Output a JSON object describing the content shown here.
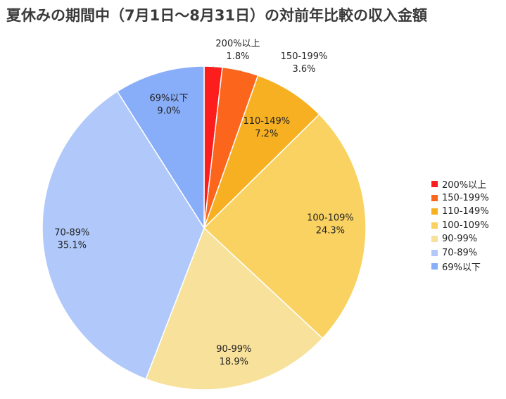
{
  "chart_data": {
    "type": "pie",
    "title": "夏休みの期間中（7月1日〜8月31日）の対前年比較の収入金額",
    "legend_position": "right",
    "slices": [
      {
        "label": "200%以上",
        "value": 1.8,
        "pct_label": "1.8%",
        "color": "#fe1d1d"
      },
      {
        "label": "150-199%",
        "value": 3.6,
        "pct_label": "3.6%",
        "color": "#fb651c"
      },
      {
        "label": "110-149%",
        "value": 7.2,
        "pct_label": "7.2%",
        "color": "#f7b021"
      },
      {
        "label": "100-109%",
        "value": 24.3,
        "pct_label": "24.3%",
        "color": "#f9d262"
      },
      {
        "label": "90-99%",
        "value": 18.9,
        "pct_label": "18.9%",
        "color": "#f8e19b"
      },
      {
        "label": "70-89%",
        "value": 35.1,
        "pct_label": "35.1%",
        "color": "#b0c9fa"
      },
      {
        "label": "69%以下",
        "value": 9.0,
        "pct_label": "9.0%",
        "color": "#88aef9"
      }
    ]
  }
}
